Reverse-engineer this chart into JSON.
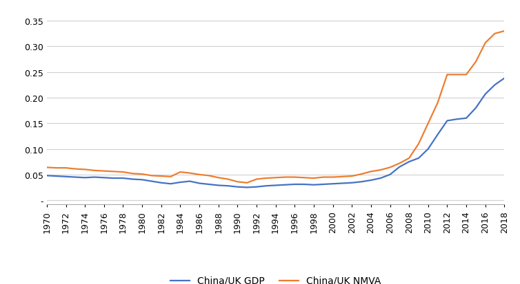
{
  "years": [
    1970,
    1971,
    1972,
    1973,
    1974,
    1975,
    1976,
    1977,
    1978,
    1979,
    1980,
    1981,
    1982,
    1983,
    1984,
    1985,
    1986,
    1987,
    1988,
    1989,
    1990,
    1991,
    1992,
    1993,
    1994,
    1995,
    1996,
    1997,
    1998,
    1999,
    2000,
    2001,
    2002,
    2003,
    2004,
    2005,
    2006,
    2007,
    2008,
    2009,
    2010,
    2011,
    2012,
    2013,
    2014,
    2015,
    2016,
    2017,
    2018
  ],
  "gdp": [
    0.048,
    0.047,
    0.046,
    0.045,
    0.044,
    0.045,
    0.044,
    0.043,
    0.043,
    0.041,
    0.04,
    0.037,
    0.034,
    0.032,
    0.035,
    0.037,
    0.033,
    0.031,
    0.029,
    0.028,
    0.026,
    0.025,
    0.026,
    0.028,
    0.029,
    0.03,
    0.031,
    0.031,
    0.03,
    0.031,
    0.032,
    0.033,
    0.034,
    0.036,
    0.039,
    0.043,
    0.05,
    0.065,
    0.075,
    0.082,
    0.1,
    0.128,
    0.155,
    0.158,
    0.16,
    0.18,
    0.207,
    0.225,
    0.238
  ],
  "nmva": [
    0.064,
    0.063,
    0.063,
    0.061,
    0.06,
    0.058,
    0.057,
    0.056,
    0.055,
    0.052,
    0.051,
    0.048,
    0.047,
    0.046,
    0.055,
    0.053,
    0.05,
    0.048,
    0.044,
    0.041,
    0.036,
    0.034,
    0.041,
    0.043,
    0.044,
    0.045,
    0.045,
    0.044,
    0.043,
    0.045,
    0.045,
    0.046,
    0.047,
    0.051,
    0.056,
    0.059,
    0.064,
    0.072,
    0.082,
    0.11,
    0.15,
    0.19,
    0.245,
    0.245,
    0.245,
    0.27,
    0.307,
    0.325,
    0.33
  ],
  "gdp_color": "#4472C4",
  "nmva_color": "#ED7D31",
  "gdp_label": "China/UK GDP",
  "nmva_label": "China/UK NMVA",
  "ylim": [
    -0.008,
    0.375
  ],
  "yticks": [
    0.0,
    0.05,
    0.1,
    0.15,
    0.2,
    0.25,
    0.3,
    0.35
  ],
  "ytick_labels": [
    "-",
    "0.05",
    "0.10",
    "0.15",
    "0.20",
    "0.25",
    "0.30",
    "0.35"
  ],
  "background_color": "#ffffff",
  "grid_color": "#d0d0d0",
  "line_width": 1.6
}
